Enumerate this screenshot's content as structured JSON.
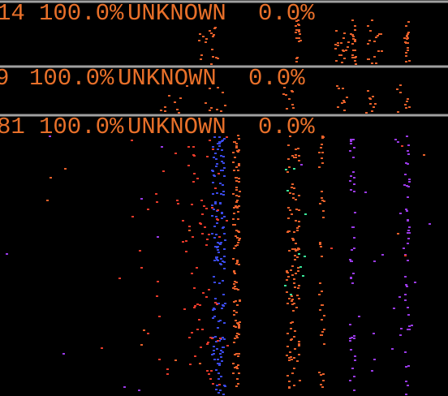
{
  "rows": [
    {
      "count": "14",
      "percent": "100.0%",
      "label": "UNKNOWN",
      "other": "0.0%"
    },
    {
      "count": "9",
      "percent": "100.0%",
      "label": "UNKNOWN",
      "other": "0.0%"
    },
    {
      "count": "81",
      "percent": "100.0%",
      "label": "UNKNOWN",
      "other": "0.0%"
    }
  ]
}
